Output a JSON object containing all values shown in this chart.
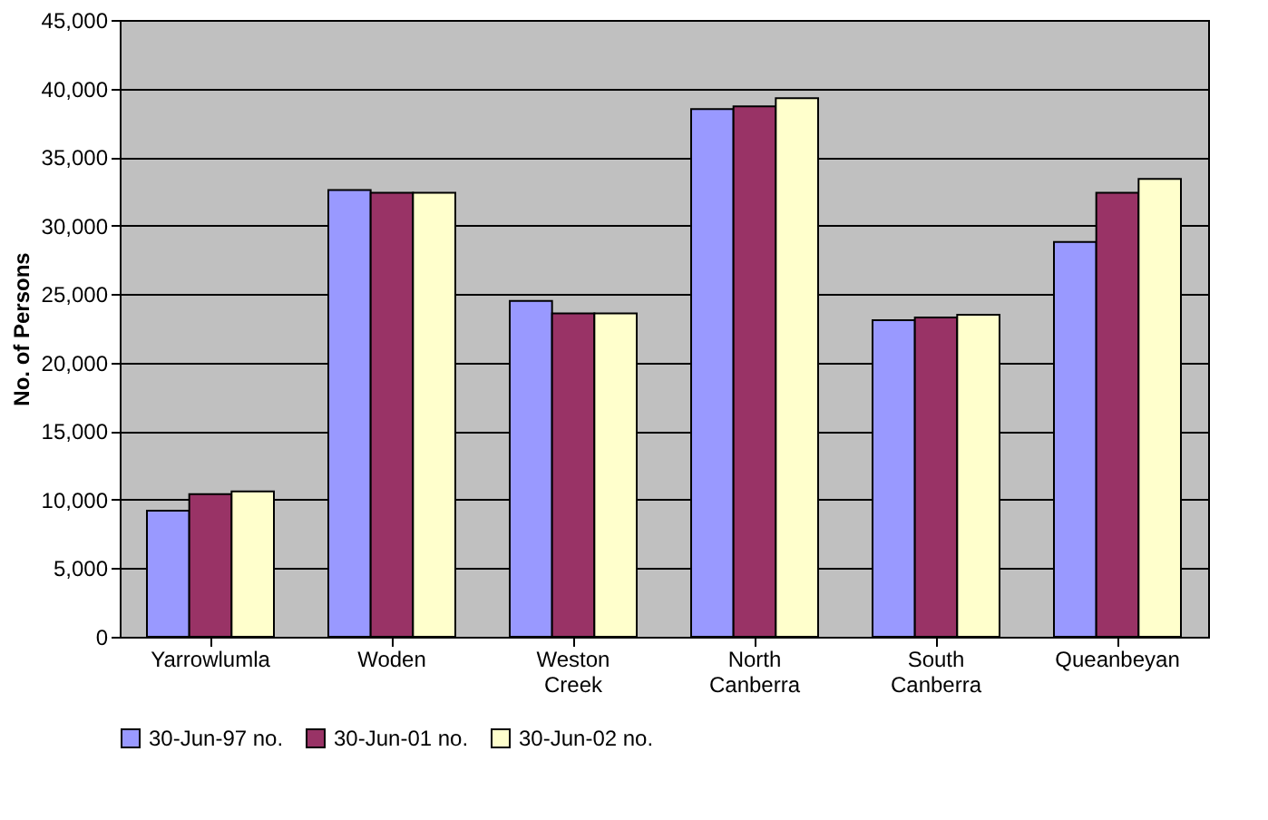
{
  "chart_data": {
    "type": "bar",
    "ylabel": "No. of Persons",
    "categories": [
      "Yarrowlumla",
      "Woden",
      "Weston Creek",
      "North Canberra",
      "South Canberra",
      "Queanbeyan"
    ],
    "series": [
      {
        "name": "30-Jun-97 no.",
        "color": "#9999ff",
        "values": [
          9200,
          32600,
          24500,
          38500,
          23100,
          28800
        ]
      },
      {
        "name": "30-Jun-01 no.",
        "color": "#993366",
        "values": [
          10400,
          32400,
          23600,
          38700,
          23300,
          32400
        ]
      },
      {
        "name": "30-Jun-02 no.",
        "color": "#ffffcc",
        "values": [
          10600,
          32400,
          23600,
          39300,
          23500,
          33400
        ]
      }
    ],
    "ylim": [
      0,
      45000
    ],
    "yticks": [
      {
        "value": 0,
        "label": "0"
      },
      {
        "value": 5000,
        "label": "5,000"
      },
      {
        "value": 10000,
        "label": "10,000"
      },
      {
        "value": 15000,
        "label": "15,000"
      },
      {
        "value": 20000,
        "label": "20,000"
      },
      {
        "value": 25000,
        "label": "25,000"
      },
      {
        "value": 30000,
        "label": "30,000"
      },
      {
        "value": 35000,
        "label": "35,000"
      },
      {
        "value": 40000,
        "label": "40,000"
      },
      {
        "value": 45000,
        "label": "45,000"
      }
    ],
    "grid": "y",
    "legend": "bottom"
  }
}
